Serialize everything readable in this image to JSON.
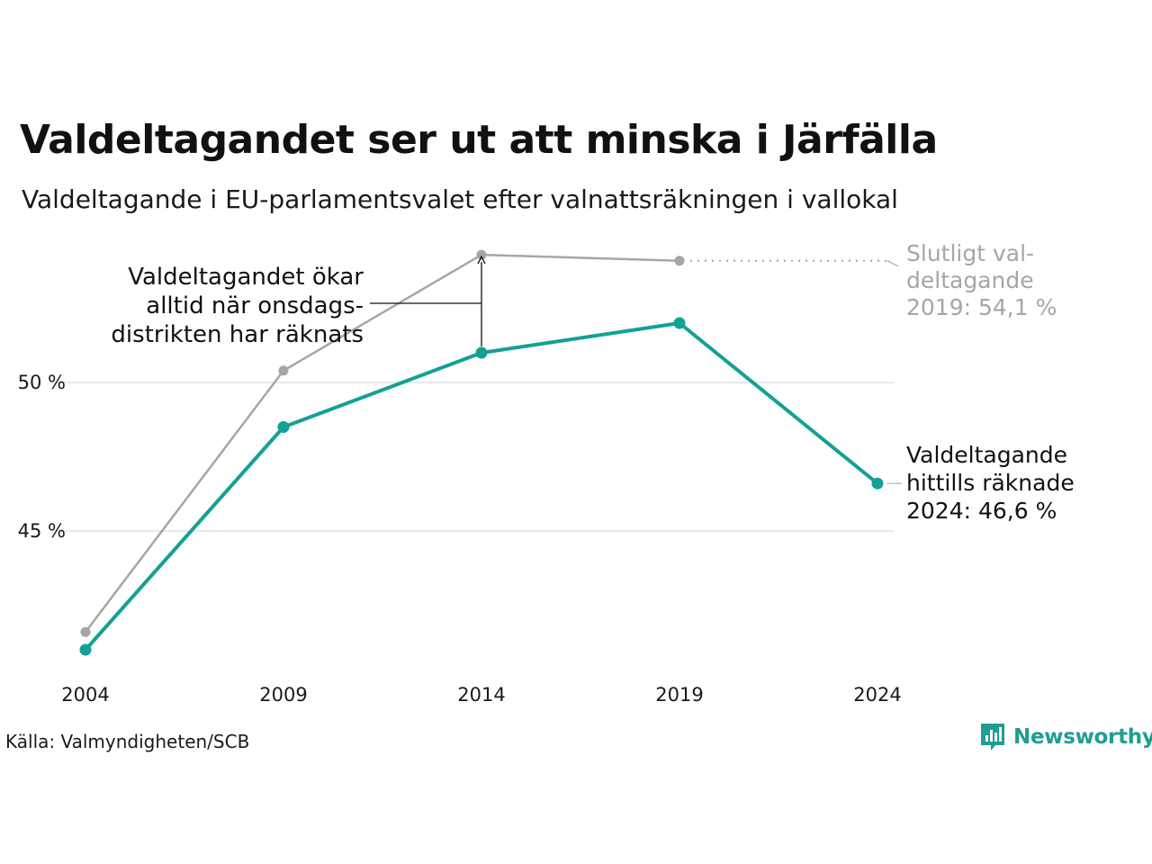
{
  "title": "Valdeltagandet ser ut att minska i Järfälla",
  "subtitle": "Valdeltagande i EU-parlamentsvalet efter valnattsräkningen i vallokal",
  "source": "Källa: Valmyndigheten/SCB",
  "brand": "Newsworthy",
  "colors": {
    "final": "#a6a6a6",
    "counted": "#13a095",
    "grid": "#e6e8ee",
    "text": "#111111"
  },
  "chart_data": {
    "type": "line",
    "x": [
      "2004",
      "2009",
      "2014",
      "2019",
      "2024"
    ],
    "y_ticks": [
      {
        "value": 45,
        "label": "45 %"
      },
      {
        "value": 50,
        "label": "50 %"
      }
    ],
    "ylim": [
      40.5,
      55.5
    ],
    "grid": true,
    "series": [
      {
        "key": "final",
        "values": [
          41.6,
          50.4,
          54.3,
          54.1,
          null
        ]
      },
      {
        "key": "counted",
        "values": [
          41.0,
          48.5,
          51.0,
          52.0,
          46.6
        ]
      }
    ],
    "annotations": {
      "note_lines": [
        "Valdeltagandet ökar",
        "alltid när onsdags-",
        "distrikten har räknats"
      ],
      "final_lines": [
        "Slutligt val-",
        "deltagande",
        "2019: 54,1 %"
      ],
      "counted_lines": [
        "Valdeltagande",
        "hittills räknade",
        "2024: 46,6 %"
      ]
    }
  }
}
